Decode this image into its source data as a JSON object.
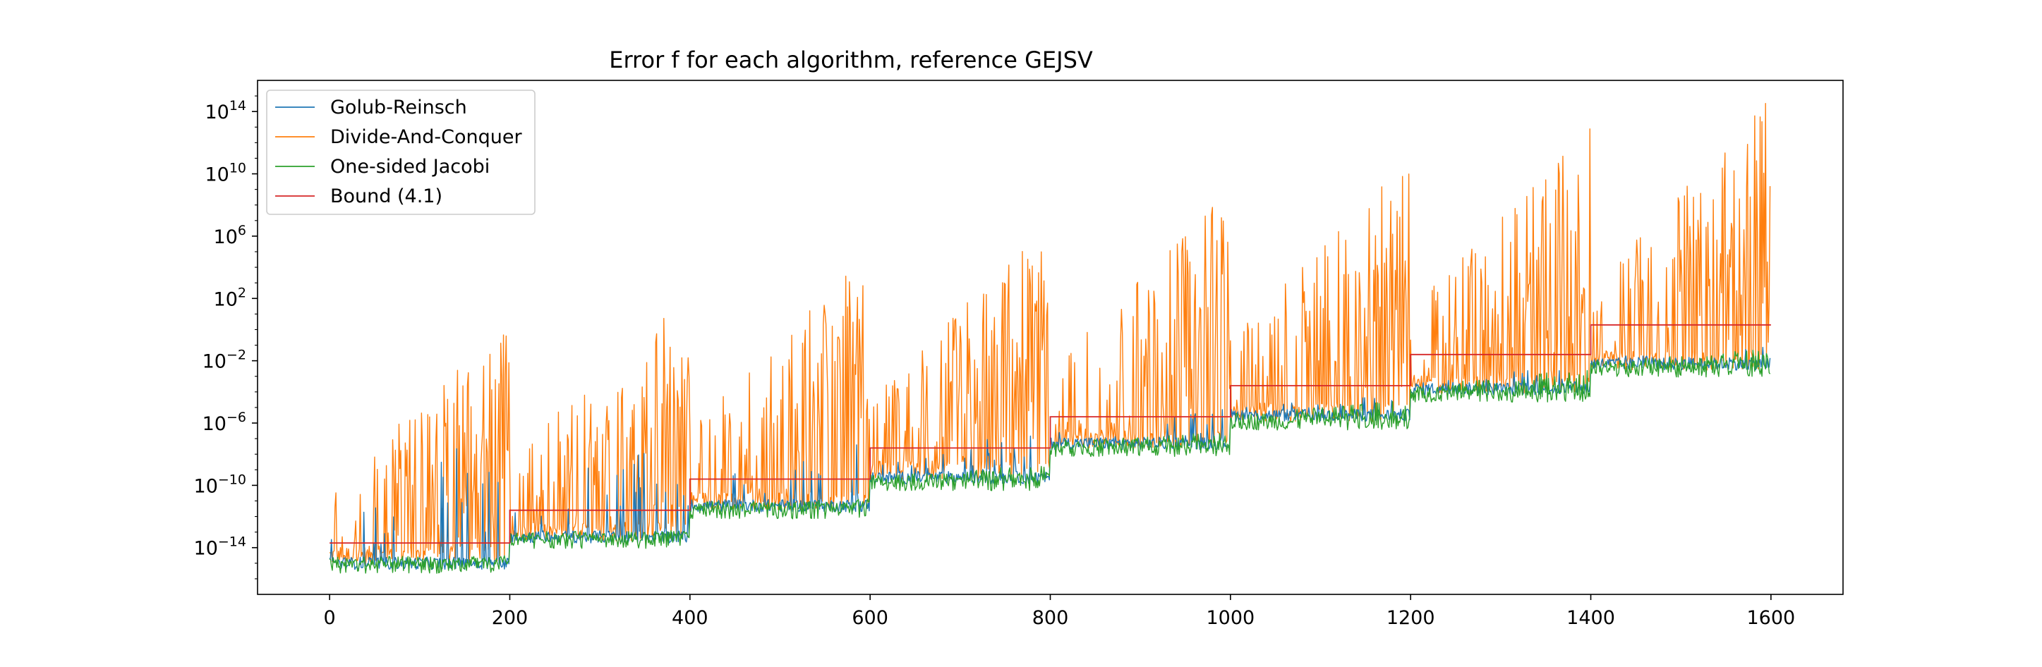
{
  "chart_data": {
    "type": "line",
    "title": "Error f for each algorithm, reference GEJSV",
    "xlabel": "",
    "ylabel": "",
    "x_range": [
      0,
      1600
    ],
    "xlim": [
      -80,
      1680
    ],
    "ylim": [
      1e-17,
      1e+16
    ],
    "yscale": "log",
    "grid": false,
    "legend_position": "top-left",
    "x_ticks": [
      {
        "value": 0,
        "label": "0"
      },
      {
        "value": 200,
        "label": "200"
      },
      {
        "value": 400,
        "label": "400"
      },
      {
        "value": 600,
        "label": "600"
      },
      {
        "value": 800,
        "label": "800"
      },
      {
        "value": 1000,
        "label": "1000"
      },
      {
        "value": 1200,
        "label": "1200"
      },
      {
        "value": 1400,
        "label": "1400"
      },
      {
        "value": 1600,
        "label": "1600"
      }
    ],
    "y_ticks": [
      {
        "exponent": -14,
        "base": "10",
        "sup": "−14"
      },
      {
        "exponent": -10,
        "base": "10",
        "sup": "−10"
      },
      {
        "exponent": -6,
        "base": "10",
        "sup": "−6"
      },
      {
        "exponent": -2,
        "base": "10",
        "sup": "−2"
      },
      {
        "exponent": 2,
        "base": "10",
        "sup": "2"
      },
      {
        "exponent": 6,
        "base": "10",
        "sup": "6"
      },
      {
        "exponent": 10,
        "base": "10",
        "sup": "10"
      },
      {
        "exponent": 14,
        "base": "10",
        "sup": "14"
      }
    ],
    "series": [
      {
        "name": "Golub-Reinsch",
        "color": "#1f77b4",
        "segments": [
          {
            "x_start": 0,
            "x_end": 200,
            "baseline_log10": -15.0,
            "spike_max_log10": -5.0
          },
          {
            "x_start": 200,
            "x_end": 400,
            "baseline_log10": -13.3,
            "spike_max_log10": -6.0
          },
          {
            "x_start": 400,
            "x_end": 600,
            "baseline_log10": -11.3,
            "spike_max_log10": -7.0
          },
          {
            "x_start": 600,
            "x_end": 800,
            "baseline_log10": -9.5,
            "spike_max_log10": -6.0
          },
          {
            "x_start": 800,
            "x_end": 1000,
            "baseline_log10": -7.3,
            "spike_max_log10": -5.0
          },
          {
            "x_start": 1000,
            "x_end": 1200,
            "baseline_log10": -5.5,
            "spike_max_log10": -4.0
          },
          {
            "x_start": 1200,
            "x_end": 1400,
            "baseline_log10": -3.8,
            "spike_max_log10": -2.0
          },
          {
            "x_start": 1400,
            "x_end": 1600,
            "baseline_log10": -2.2,
            "spike_max_log10": -1.0
          }
        ]
      },
      {
        "name": "Divide-And-Conquer",
        "color": "#ff7f0e",
        "segments": [
          {
            "x_start": 0,
            "x_end": 200,
            "baseline_log10": -14.5,
            "spike_max_log10": 0.5
          },
          {
            "x_start": 200,
            "x_end": 400,
            "baseline_log10": -13.0,
            "spike_max_log10": 3.0
          },
          {
            "x_start": 400,
            "x_end": 600,
            "baseline_log10": -11.0,
            "spike_max_log10": 5.0
          },
          {
            "x_start": 600,
            "x_end": 800,
            "baseline_log10": -9.0,
            "spike_max_log10": 7.0
          },
          {
            "x_start": 800,
            "x_end": 1000,
            "baseline_log10": -7.0,
            "spike_max_log10": 9.2
          },
          {
            "x_start": 1000,
            "x_end": 1200,
            "baseline_log10": -5.3,
            "spike_max_log10": 11.3
          },
          {
            "x_start": 1200,
            "x_end": 1400,
            "baseline_log10": -3.5,
            "spike_max_log10": 13.3
          },
          {
            "x_start": 1400,
            "x_end": 1600,
            "baseline_log10": -2.0,
            "spike_max_log10": 15.0
          }
        ]
      },
      {
        "name": "One-sided Jacobi",
        "color": "#2ca02c",
        "segments": [
          {
            "x_start": 0,
            "x_end": 200,
            "baseline_log10": -15.1,
            "spike_max_log10": -14.5
          },
          {
            "x_start": 200,
            "x_end": 400,
            "baseline_log10": -13.5,
            "spike_max_log10": -12.8
          },
          {
            "x_start": 400,
            "x_end": 600,
            "baseline_log10": -11.6,
            "spike_max_log10": -10.8
          },
          {
            "x_start": 600,
            "x_end": 800,
            "baseline_log10": -9.8,
            "spike_max_log10": -8.6
          },
          {
            "x_start": 800,
            "x_end": 1000,
            "baseline_log10": -7.6,
            "spike_max_log10": -6.5
          },
          {
            "x_start": 1000,
            "x_end": 1200,
            "baseline_log10": -5.9,
            "spike_max_log10": -4.5
          },
          {
            "x_start": 1200,
            "x_end": 1400,
            "baseline_log10": -4.1,
            "spike_max_log10": -2.5
          },
          {
            "x_start": 1400,
            "x_end": 1600,
            "baseline_log10": -2.5,
            "spike_max_log10": -1.2
          }
        ]
      },
      {
        "name": "Bound (4.1)",
        "color": "#d62728",
        "segments": [
          {
            "x_start": 0,
            "x_end": 200,
            "value_log10": -13.7
          },
          {
            "x_start": 200,
            "x_end": 400,
            "value_log10": -11.6
          },
          {
            "x_start": 400,
            "x_end": 600,
            "value_log10": -9.6
          },
          {
            "x_start": 600,
            "x_end": 800,
            "value_log10": -7.6
          },
          {
            "x_start": 800,
            "x_end": 1000,
            "value_log10": -5.6
          },
          {
            "x_start": 1000,
            "x_end": 1200,
            "value_log10": -3.6
          },
          {
            "x_start": 1200,
            "x_end": 1400,
            "value_log10": -1.6
          },
          {
            "x_start": 1400,
            "x_end": 1600,
            "value_log10": 0.3
          }
        ]
      }
    ]
  }
}
